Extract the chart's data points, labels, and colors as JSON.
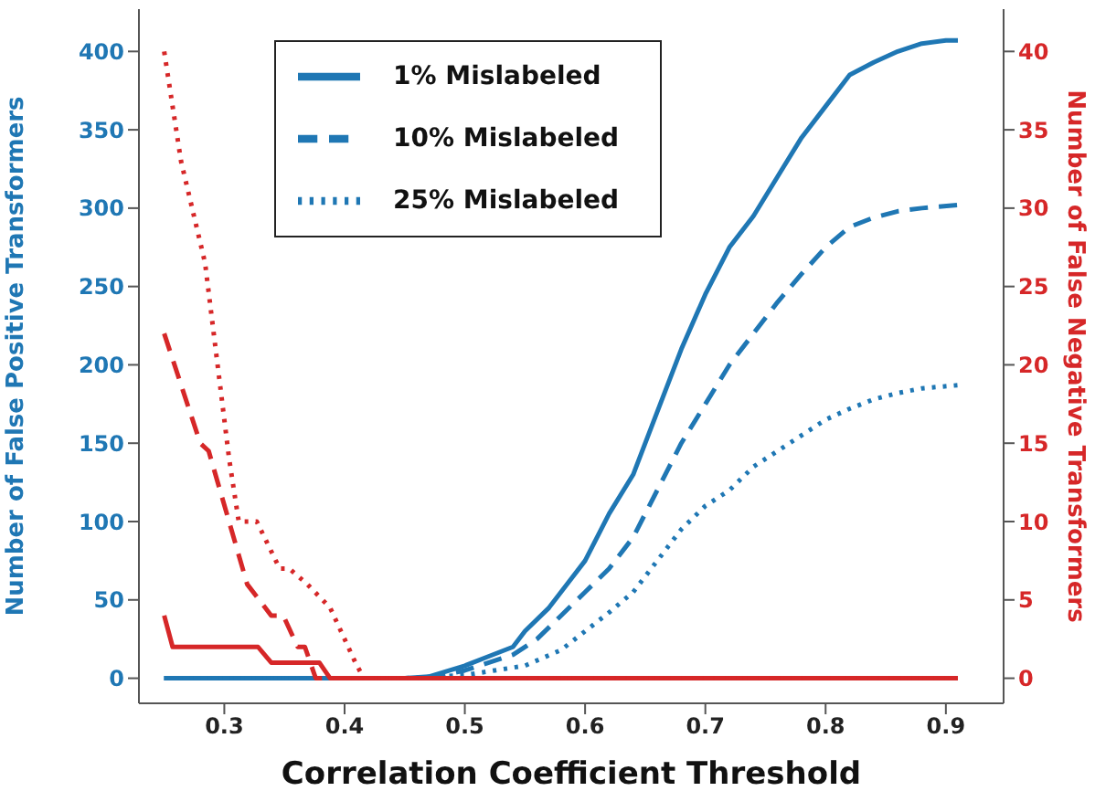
{
  "chart_data": {
    "type": "line",
    "xlabel": "Correlation Coefficient Threshold",
    "ylabel": "Number of False Positive Transformers",
    "y2label": "Number of False Negative Transformers",
    "xlim": [
      0.229,
      0.948
    ],
    "xticks": [
      0.3,
      0.4,
      0.5,
      0.6,
      0.7,
      0.8,
      0.9
    ],
    "ylim": [
      -16,
      427
    ],
    "yticks": [
      0,
      50,
      100,
      150,
      200,
      250,
      300,
      350,
      400
    ],
    "y2lim": [
      -1.6,
      42.7
    ],
    "y2ticks": [
      0,
      5,
      10,
      15,
      20,
      25,
      30,
      35,
      40
    ],
    "legend": "top",
    "marker": "none",
    "series": [
      {
        "name": "1% Mislabeled",
        "color": "#1f77b4",
        "line_style": "solid",
        "x": [
          0.25,
          0.3,
          0.35,
          0.4,
          0.45,
          0.47,
          0.5,
          0.52,
          0.54,
          0.55,
          0.57,
          0.59,
          0.6,
          0.62,
          0.64,
          0.66,
          0.68,
          0.7,
          0.72,
          0.74,
          0.76,
          0.78,
          0.8,
          0.82,
          0.84,
          0.86,
          0.88,
          0.9,
          0.91
        ],
        "values": [
          0,
          0,
          0,
          0,
          0,
          1,
          8,
          14,
          20,
          30,
          45,
          65,
          75,
          105,
          130,
          170,
          210,
          245,
          275,
          295,
          320,
          345,
          365,
          385,
          393,
          400,
          405,
          407,
          407
        ]
      },
      {
        "name": "10% Mislabeled",
        "color": "#1f77b4",
        "line_style": "dashed",
        "x": [
          0.25,
          0.3,
          0.35,
          0.4,
          0.45,
          0.47,
          0.5,
          0.52,
          0.54,
          0.56,
          0.58,
          0.6,
          0.62,
          0.64,
          0.66,
          0.68,
          0.7,
          0.72,
          0.74,
          0.76,
          0.78,
          0.8,
          0.82,
          0.84,
          0.86,
          0.88,
          0.91
        ],
        "values": [
          0,
          0,
          0,
          0,
          0,
          0,
          5,
          10,
          15,
          25,
          40,
          55,
          70,
          90,
          120,
          150,
          175,
          200,
          220,
          240,
          258,
          275,
          288,
          294,
          298,
          300,
          302
        ]
      },
      {
        "name": "25% Mislabeled",
        "color": "#1f77b4",
        "line_style": "dotted",
        "x": [
          0.25,
          0.3,
          0.35,
          0.4,
          0.45,
          0.5,
          0.55,
          0.58,
          0.6,
          0.62,
          0.64,
          0.66,
          0.68,
          0.7,
          0.72,
          0.74,
          0.76,
          0.78,
          0.8,
          0.82,
          0.84,
          0.86,
          0.88,
          0.91
        ],
        "values": [
          0,
          0,
          0,
          0,
          0,
          2,
          8,
          18,
          30,
          42,
          55,
          75,
          95,
          110,
          120,
          135,
          145,
          155,
          165,
          172,
          178,
          182,
          185,
          187
        ]
      },
      {
        "color": "#d62728",
        "line_style": "solid",
        "axis": "y2",
        "x": [
          0.25,
          0.257,
          0.328,
          0.339,
          0.379,
          0.388,
          0.5,
          0.6,
          0.7,
          0.8,
          0.91
        ],
        "values": [
          4,
          2,
          2,
          1,
          1,
          0,
          0,
          0,
          0,
          0,
          0
        ]
      },
      {
        "color": "#d62728",
        "line_style": "dashed",
        "axis": "y2",
        "x": [
          0.25,
          0.28,
          0.287,
          0.319,
          0.339,
          0.349,
          0.361,
          0.367,
          0.376,
          0.5,
          0.6,
          0.7,
          0.8,
          0.91
        ],
        "values": [
          22,
          15,
          14.5,
          6,
          4,
          4,
          2,
          2,
          0,
          0,
          0,
          0,
          0,
          0
        ]
      },
      {
        "color": "#d62728",
        "line_style": "dotted",
        "axis": "y2",
        "x": [
          0.25,
          0.264,
          0.284,
          0.304,
          0.312,
          0.327,
          0.346,
          0.354,
          0.369,
          0.388,
          0.409,
          0.416,
          0.5,
          0.6,
          0.7,
          0.8,
          0.91
        ],
        "values": [
          40,
          33,
          26.5,
          14,
          10,
          10,
          7,
          7,
          6,
          4.5,
          1,
          0,
          0,
          0,
          0,
          0,
          0
        ]
      }
    ]
  }
}
